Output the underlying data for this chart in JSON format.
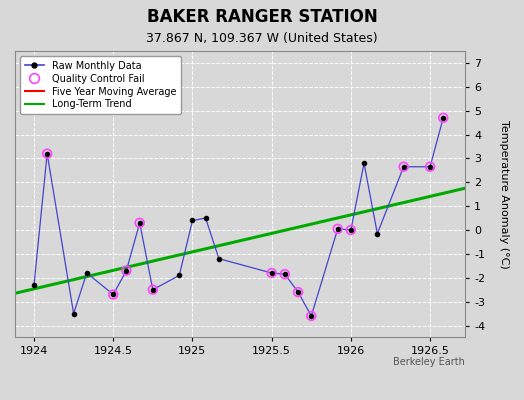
{
  "title": "BAKER RANGER STATION",
  "subtitle": "37.867 N, 109.367 W (United States)",
  "attribution": "Berkeley Earth",
  "ylabel": "Temperature Anomaly (°C)",
  "xlim": [
    1923.88,
    1926.72
  ],
  "ylim": [
    -4.5,
    7.5
  ],
  "yticks": [
    -4,
    -3,
    -2,
    -1,
    0,
    1,
    2,
    3,
    4,
    5,
    6,
    7
  ],
  "xticks": [
    1924,
    1924.5,
    1925,
    1925.5,
    1926,
    1926.5
  ],
  "background_color": "#d8d8d8",
  "plot_bg_color": "#d8d8d8",
  "raw_x": [
    1924.0,
    1924.083,
    1924.25,
    1924.333,
    1924.5,
    1924.583,
    1924.667,
    1924.75,
    1924.917,
    1925.0,
    1925.083,
    1925.167,
    1925.5,
    1925.583,
    1925.667,
    1925.75,
    1925.917,
    1926.0,
    1926.083,
    1926.167,
    1926.333,
    1926.5,
    1926.583
  ],
  "raw_y": [
    -2.3,
    3.2,
    -3.5,
    -1.8,
    -2.7,
    -1.7,
    0.3,
    -2.5,
    -1.9,
    0.4,
    0.5,
    -1.2,
    -1.8,
    -1.85,
    -2.6,
    -3.6,
    0.05,
    0.0,
    2.8,
    -0.15,
    2.65,
    2.65,
    4.7
  ],
  "qc_fail_x": [
    1924.083,
    1924.5,
    1924.583,
    1924.667,
    1924.75,
    1925.5,
    1925.583,
    1925.667,
    1925.75,
    1925.917,
    1926.0,
    1926.333,
    1926.5,
    1926.583
  ],
  "qc_fail_y": [
    3.2,
    -2.7,
    -1.7,
    0.3,
    -2.5,
    -1.8,
    -1.85,
    -2.6,
    -3.6,
    0.05,
    0.0,
    2.65,
    2.65,
    4.7
  ],
  "trend_x": [
    1923.88,
    1926.72
  ],
  "trend_y": [
    -2.65,
    1.75
  ],
  "raw_color": "#4444cc",
  "raw_marker_color": "#000000",
  "qc_color": "#ff44ff",
  "trend_color": "#00aa00",
  "moving_avg_color": "#ff0000",
  "grid_color": "#ffffff",
  "title_fontsize": 12,
  "subtitle_fontsize": 9,
  "tick_fontsize": 8,
  "ylabel_fontsize": 8
}
